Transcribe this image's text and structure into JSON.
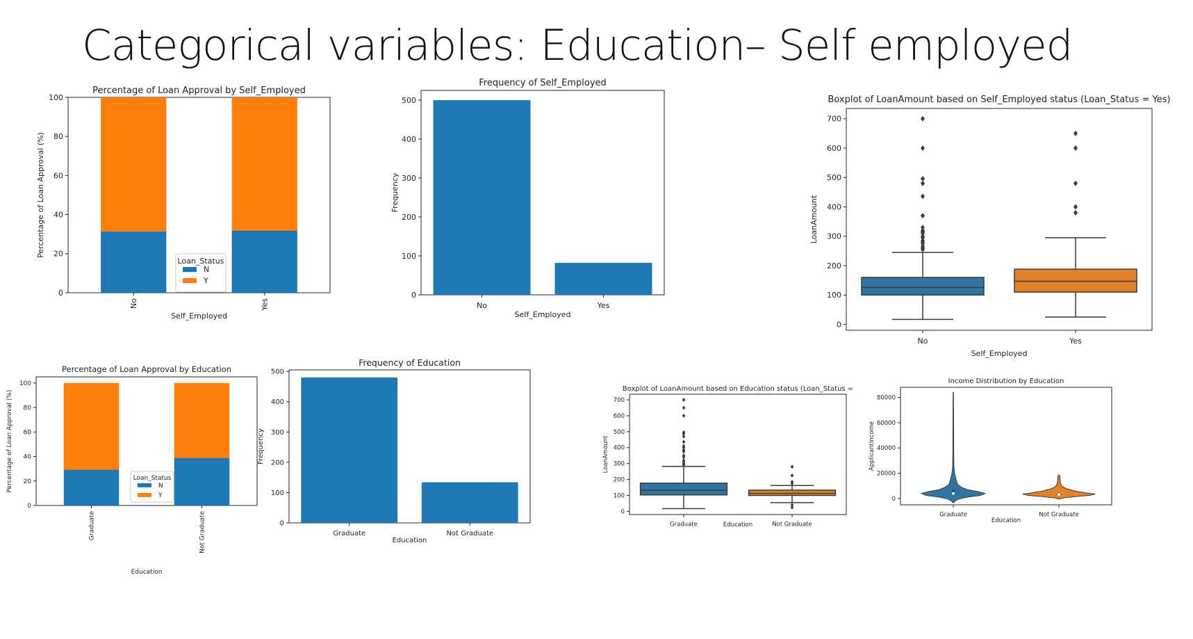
{
  "slide": {
    "title": "Categorical variables: Education– Self employed"
  },
  "colors": {
    "blue": "#1f77b4",
    "orange": "#ff7f0e",
    "box_blue": "#3274a1",
    "box_orange": "#e1812c"
  },
  "chart_data": [
    {
      "type": "bar",
      "stacked": true,
      "title": "Percentage of Loan Approval by Self_Employed",
      "xlabel": "Self_Employed",
      "ylabel": "Percentage of Loan Approval (%)",
      "categories": [
        "No",
        "Yes"
      ],
      "series": [
        {
          "name": "N",
          "values": [
            31.4,
            31.7
          ]
        },
        {
          "name": "Y",
          "values": [
            68.6,
            68.3
          ]
        }
      ],
      "ylim": [
        0,
        100
      ],
      "yticks": [
        0,
        20,
        40,
        60,
        80,
        100
      ],
      "legend": {
        "title": "Loan_Status",
        "placement": "lower-center"
      },
      "grid": false
    },
    {
      "type": "bar",
      "title": "Frequency of Self_Employed",
      "xlabel": "Self_Employed",
      "ylabel": "Frequency",
      "categories": [
        "No",
        "Yes"
      ],
      "values": [
        500,
        82
      ],
      "ylim": [
        0,
        525
      ],
      "yticks": [
        0,
        100,
        200,
        300,
        400,
        500
      ],
      "grid": false
    },
    {
      "type": "boxplot",
      "title": "Boxplot of LoanAmount based on Self_Employed status (Loan_Status = Yes)",
      "xlabel": "Self_Employed",
      "ylabel": "LoanAmount",
      "categories": [
        "No",
        "Yes"
      ],
      "boxes": [
        {
          "whislo": 17,
          "q1": 100,
          "med": 126,
          "q3": 160,
          "whishi": 245,
          "fliers": [
            255,
            260,
            265,
            275,
            280,
            285,
            295,
            300,
            310,
            315,
            320,
            330,
            370,
            436,
            480,
            496,
            600,
            700
          ]
        },
        {
          "whislo": 25,
          "q1": 110,
          "med": 147,
          "q3": 188,
          "whishi": 295,
          "fliers": [
            380,
            400,
            480,
            600,
            650
          ]
        }
      ],
      "ylim": [
        -20,
        735
      ],
      "yticks": [
        0,
        100,
        200,
        300,
        400,
        500,
        600,
        700
      ],
      "grid": false
    },
    {
      "type": "bar",
      "stacked": true,
      "title": "Percentage of Loan Approval by Education",
      "xlabel": "Education",
      "ylabel": "Percentage of Loan Approval (%)",
      "categories": [
        "Graduate",
        "Not Graduate"
      ],
      "series": [
        {
          "name": "N",
          "values": [
            29.2,
            38.8
          ]
        },
        {
          "name": "Y",
          "values": [
            70.8,
            61.2
          ]
        }
      ],
      "ylim": [
        0,
        105
      ],
      "yticks": [
        0,
        20,
        40,
        60,
        80,
        100
      ],
      "legend": {
        "title": "Loan_Status",
        "placement": "lower-center"
      },
      "grid": false
    },
    {
      "type": "bar",
      "title": "Frequency of Education",
      "xlabel": "Education",
      "ylabel": "Frequency",
      "categories": [
        "Graduate",
        "Not Graduate"
      ],
      "values": [
        480,
        134
      ],
      "ylim": [
        0,
        505
      ],
      "yticks": [
        0,
        100,
        200,
        300,
        400,
        500
      ],
      "grid": false
    },
    {
      "type": "boxplot",
      "title": "Boxplot of LoanAmount based on Education status (Loan_Status =",
      "xlabel": "Education",
      "ylabel": "LoanAmount",
      "categories": [
        "Graduate",
        "Not Graduate"
      ],
      "boxes": [
        {
          "whislo": 17,
          "q1": 103,
          "med": 132,
          "q3": 177,
          "whishi": 282,
          "fliers": [
            292,
            300,
            310,
            320,
            340,
            350,
            375,
            385,
            400,
            410,
            436,
            470,
            485,
            496,
            600,
            650,
            700
          ]
        },
        {
          "whislo": 55,
          "q1": 100,
          "med": 113,
          "q3": 133,
          "whishi": 162,
          "fliers": [
            25,
            40,
            175,
            185,
            225,
            280
          ]
        }
      ],
      "ylim": [
        -20,
        735
      ],
      "yticks": [
        0,
        100,
        200,
        300,
        400,
        500,
        600,
        700
      ],
      "grid": false
    },
    {
      "type": "violin",
      "title": "Income Distribution by Education",
      "xlabel": "Education",
      "ylabel": "ApplicantIncome",
      "categories": [
        "Graduate",
        "Not Graduate"
      ],
      "violins": [
        {
          "min": -3500,
          "max": 84000,
          "q1": 2900,
          "med": 4000,
          "q3": 6500,
          "profile": [
            [
              -3500,
              0.0
            ],
            [
              -2000,
              0.04
            ],
            [
              -500,
              0.12
            ],
            [
              1000,
              0.3
            ],
            [
              2500,
              0.62
            ],
            [
              4000,
              0.72
            ],
            [
              5500,
              0.55
            ],
            [
              7000,
              0.32
            ],
            [
              9000,
              0.18
            ],
            [
              11000,
              0.1
            ],
            [
              14000,
              0.07
            ],
            [
              17000,
              0.05
            ],
            [
              20000,
              0.03
            ],
            [
              25000,
              0.015
            ],
            [
              35000,
              0.01
            ],
            [
              50000,
              0.008
            ],
            [
              70000,
              0.006
            ],
            [
              84000,
              0.004
            ]
          ]
        },
        {
          "min": -500,
          "max": 18700,
          "q1": 2200,
          "med": 3200,
          "q3": 4500,
          "profile": [
            [
              -500,
              0.0
            ],
            [
              500,
              0.1
            ],
            [
              1500,
              0.4
            ],
            [
              2500,
              0.7
            ],
            [
              3500,
              0.82
            ],
            [
              4500,
              0.6
            ],
            [
              6000,
              0.35
            ],
            [
              8000,
              0.15
            ],
            [
              10000,
              0.06
            ],
            [
              13000,
              0.03
            ],
            [
              16000,
              0.025
            ],
            [
              18000,
              0.02
            ],
            [
              18700,
              0.0
            ]
          ]
        }
      ],
      "ylim": [
        -5000,
        88000
      ],
      "yticks": [
        0,
        20000,
        40000,
        60000,
        80000
      ],
      "grid": false
    }
  ]
}
